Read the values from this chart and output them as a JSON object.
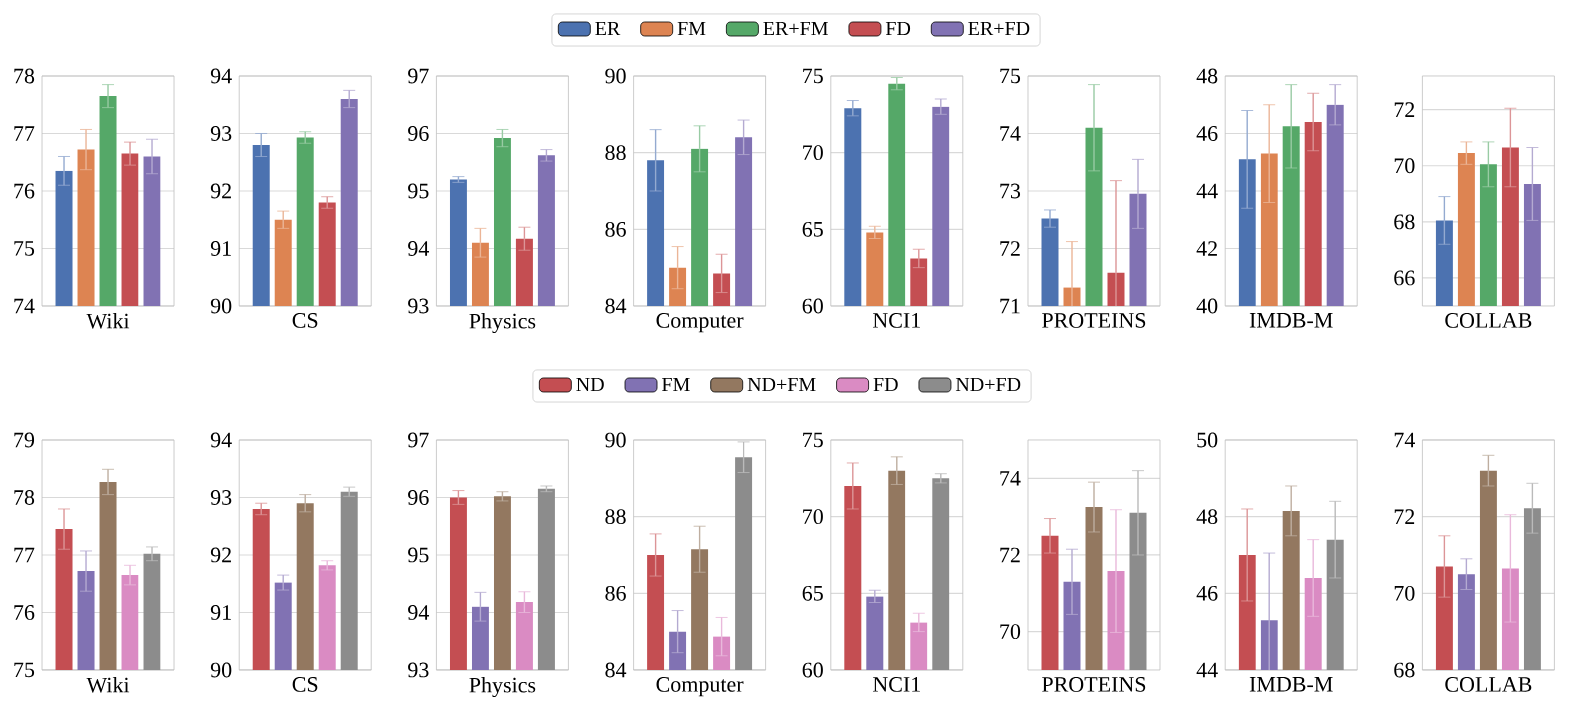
{
  "chart_data": [
    {
      "type": "bar",
      "categories": [
        "Wiki"
      ],
      "ylim": [
        74,
        78
      ],
      "yticks": [
        74,
        75,
        76,
        77,
        78
      ],
      "grid": "y",
      "legend": "top",
      "series": [
        {
          "name": "ER",
          "color": "#4c72b0",
          "values": [
            76.35
          ],
          "errors": [
            0.25
          ]
        },
        {
          "name": "FM",
          "color": "#dd8452",
          "values": [
            76.72
          ],
          "errors": [
            0.35
          ]
        },
        {
          "name": "ER+FM",
          "color": "#55a868",
          "values": [
            77.65
          ],
          "errors": [
            0.2
          ]
        },
        {
          "name": "FD",
          "color": "#c44e52",
          "values": [
            76.65
          ],
          "errors": [
            0.2
          ]
        },
        {
          "name": "ER+FD",
          "color": "#8172b3",
          "values": [
            76.6
          ],
          "errors": [
            0.3
          ]
        }
      ]
    },
    {
      "type": "bar",
      "categories": [
        "CS"
      ],
      "ylim": [
        90,
        94
      ],
      "yticks": [
        90,
        91,
        92,
        93,
        94
      ],
      "grid": "y",
      "series": [
        {
          "color": "#4c72b0",
          "values": [
            92.8
          ],
          "errors": [
            0.2
          ]
        },
        {
          "color": "#dd8452",
          "values": [
            91.5
          ],
          "errors": [
            0.15
          ]
        },
        {
          "color": "#55a868",
          "values": [
            92.93
          ],
          "errors": [
            0.1
          ]
        },
        {
          "color": "#c44e52",
          "values": [
            91.8
          ],
          "errors": [
            0.1
          ]
        },
        {
          "color": "#8172b3",
          "values": [
            93.6
          ],
          "errors": [
            0.15
          ]
        }
      ]
    },
    {
      "type": "bar",
      "categories": [
        "Physics"
      ],
      "ylim": [
        93,
        97
      ],
      "yticks": [
        93,
        94,
        95,
        96,
        97
      ],
      "grid": "y",
      "series": [
        {
          "color": "#4c72b0",
          "values": [
            95.2
          ],
          "errors": [
            0.05
          ]
        },
        {
          "color": "#dd8452",
          "values": [
            94.1
          ],
          "errors": [
            0.25
          ]
        },
        {
          "color": "#55a868",
          "values": [
            95.92
          ],
          "errors": [
            0.15
          ]
        },
        {
          "color": "#c44e52",
          "values": [
            94.17
          ],
          "errors": [
            0.2
          ]
        },
        {
          "color": "#8172b3",
          "values": [
            95.62
          ],
          "errors": [
            0.1
          ]
        }
      ]
    },
    {
      "type": "bar",
      "categories": [
        "Computer"
      ],
      "ylim": [
        84,
        90
      ],
      "yticks": [
        84,
        86,
        88,
        90
      ],
      "grid": "y",
      "series": [
        {
          "color": "#4c72b0",
          "values": [
            87.8
          ],
          "errors": [
            0.8
          ]
        },
        {
          "color": "#dd8452",
          "values": [
            85.0
          ],
          "errors": [
            0.55
          ]
        },
        {
          "color": "#55a868",
          "values": [
            88.1
          ],
          "errors": [
            0.6
          ]
        },
        {
          "color": "#c44e52",
          "values": [
            84.85
          ],
          "errors": [
            0.5
          ]
        },
        {
          "color": "#8172b3",
          "values": [
            88.4
          ],
          "errors": [
            0.45
          ]
        }
      ]
    },
    {
      "type": "bar",
      "categories": [
        "NCI1"
      ],
      "ylim": [
        60,
        75
      ],
      "yticks": [
        60,
        65,
        70,
        75
      ],
      "grid": "y",
      "series": [
        {
          "color": "#4c72b0",
          "values": [
            72.9
          ],
          "errors": [
            0.5
          ]
        },
        {
          "color": "#dd8452",
          "values": [
            64.8
          ],
          "errors": [
            0.4
          ]
        },
        {
          "color": "#55a868",
          "values": [
            74.5
          ],
          "errors": [
            0.4
          ]
        },
        {
          "color": "#c44e52",
          "values": [
            63.1
          ],
          "errors": [
            0.6
          ]
        },
        {
          "color": "#8172b3",
          "values": [
            73.0
          ],
          "errors": [
            0.5
          ]
        }
      ]
    },
    {
      "type": "bar",
      "categories": [
        "PROTEINS"
      ],
      "ylim": [
        71,
        75
      ],
      "yticks": [
        71,
        72,
        73,
        74,
        75
      ],
      "grid": "y",
      "series": [
        {
          "color": "#4c72b0",
          "values": [
            72.52
          ],
          "errors": [
            0.15
          ]
        },
        {
          "color": "#dd8452",
          "values": [
            71.32
          ],
          "errors": [
            0.8
          ]
        },
        {
          "color": "#55a868",
          "values": [
            74.1
          ],
          "errors": [
            0.75
          ]
        },
        {
          "color": "#c44e52",
          "values": [
            71.58
          ],
          "errors": [
            1.6
          ]
        },
        {
          "color": "#8172b3",
          "values": [
            72.95
          ],
          "errors": [
            0.6
          ]
        }
      ]
    },
    {
      "type": "bar",
      "categories": [
        "IMDB-M"
      ],
      "ylim": [
        40,
        48
      ],
      "yticks": [
        40,
        42,
        44,
        46,
        48
      ],
      "grid": "y",
      "series": [
        {
          "color": "#4c72b0",
          "values": [
            45.1
          ],
          "errors": [
            1.7
          ]
        },
        {
          "color": "#dd8452",
          "values": [
            45.3
          ],
          "errors": [
            1.7
          ]
        },
        {
          "color": "#55a868",
          "values": [
            46.25
          ],
          "errors": [
            1.45
          ]
        },
        {
          "color": "#c44e52",
          "values": [
            46.4
          ],
          "errors": [
            1.0
          ]
        },
        {
          "color": "#8172b3",
          "values": [
            47.0
          ],
          "errors": [
            0.7
          ]
        }
      ]
    },
    {
      "type": "bar",
      "categories": [
        "COLLAB"
      ],
      "ylim": [
        65,
        73.2
      ],
      "yticks": [
        66,
        68,
        70,
        72
      ],
      "grid": "y",
      "series": [
        {
          "color": "#4c72b0",
          "values": [
            68.05
          ],
          "errors": [
            0.85
          ]
        },
        {
          "color": "#dd8452",
          "values": [
            70.45
          ],
          "errors": [
            0.4
          ]
        },
        {
          "color": "#55a868",
          "values": [
            70.05
          ],
          "errors": [
            0.8
          ]
        },
        {
          "color": "#c44e52",
          "values": [
            70.65
          ],
          "errors": [
            1.4
          ]
        },
        {
          "color": "#8172b3",
          "values": [
            69.35
          ],
          "errors": [
            1.3
          ]
        }
      ]
    },
    {
      "type": "bar",
      "categories": [
        "Wiki"
      ],
      "ylim": [
        75,
        79
      ],
      "yticks": [
        75,
        76,
        77,
        78,
        79
      ],
      "grid": "y",
      "legend": "top",
      "series": [
        {
          "name": "ND",
          "color": "#c44e52",
          "values": [
            77.45
          ],
          "errors": [
            0.35
          ]
        },
        {
          "name": "FM",
          "color": "#8172b3",
          "values": [
            76.72
          ],
          "errors": [
            0.35
          ]
        },
        {
          "name": "ND+FM",
          "color": "#937860",
          "values": [
            78.27
          ],
          "errors": [
            0.22
          ]
        },
        {
          "name": "FD",
          "color": "#da8bc3",
          "values": [
            76.65
          ],
          "errors": [
            0.17
          ]
        },
        {
          "name": "ND+FD",
          "color": "#8c8c8c",
          "values": [
            77.02
          ],
          "errors": [
            0.12
          ]
        }
      ]
    },
    {
      "type": "bar",
      "categories": [
        "CS"
      ],
      "ylim": [
        90,
        94
      ],
      "yticks": [
        90,
        91,
        92,
        93,
        94
      ],
      "grid": "y",
      "series": [
        {
          "color": "#c44e52",
          "values": [
            92.8
          ],
          "errors": [
            0.1
          ]
        },
        {
          "color": "#8172b3",
          "values": [
            91.52
          ],
          "errors": [
            0.13
          ]
        },
        {
          "color": "#937860",
          "values": [
            92.9
          ],
          "errors": [
            0.15
          ]
        },
        {
          "color": "#da8bc3",
          "values": [
            91.82
          ],
          "errors": [
            0.08
          ]
        },
        {
          "color": "#8c8c8c",
          "values": [
            93.1
          ],
          "errors": [
            0.08
          ]
        }
      ]
    },
    {
      "type": "bar",
      "categories": [
        "Physics"
      ],
      "ylim": [
        93,
        97
      ],
      "yticks": [
        93,
        94,
        95,
        96,
        97
      ],
      "grid": "y",
      "series": [
        {
          "color": "#c44e52",
          "values": [
            96.0
          ],
          "errors": [
            0.12
          ]
        },
        {
          "color": "#8172b3",
          "values": [
            94.1
          ],
          "errors": [
            0.25
          ]
        },
        {
          "color": "#937860",
          "values": [
            96.02
          ],
          "errors": [
            0.08
          ]
        },
        {
          "color": "#da8bc3",
          "values": [
            94.18
          ],
          "errors": [
            0.18
          ]
        },
        {
          "color": "#8c8c8c",
          "values": [
            96.15
          ],
          "errors": [
            0.05
          ]
        }
      ]
    },
    {
      "type": "bar",
      "categories": [
        "Computer"
      ],
      "ylim": [
        84,
        90
      ],
      "yticks": [
        84,
        86,
        88,
        90
      ],
      "grid": "y",
      "series": [
        {
          "color": "#c44e52",
          "values": [
            87.0
          ],
          "errors": [
            0.55
          ]
        },
        {
          "color": "#8172b3",
          "values": [
            85.0
          ],
          "errors": [
            0.55
          ]
        },
        {
          "color": "#937860",
          "values": [
            87.15
          ],
          "errors": [
            0.6
          ]
        },
        {
          "color": "#da8bc3",
          "values": [
            84.87
          ],
          "errors": [
            0.5
          ]
        },
        {
          "color": "#8c8c8c",
          "values": [
            89.55
          ],
          "errors": [
            0.4
          ]
        }
      ]
    },
    {
      "type": "bar",
      "categories": [
        "NCI1"
      ],
      "ylim": [
        60,
        75
      ],
      "yticks": [
        60,
        65,
        70,
        75
      ],
      "grid": "y",
      "series": [
        {
          "color": "#c44e52",
          "values": [
            72.0
          ],
          "errors": [
            1.5
          ]
        },
        {
          "color": "#8172b3",
          "values": [
            64.8
          ],
          "errors": [
            0.4
          ]
        },
        {
          "color": "#937860",
          "values": [
            73.0
          ],
          "errors": [
            0.9
          ]
        },
        {
          "color": "#da8bc3",
          "values": [
            63.1
          ],
          "errors": [
            0.6
          ]
        },
        {
          "color": "#8c8c8c",
          "values": [
            72.5
          ],
          "errors": [
            0.3
          ]
        }
      ]
    },
    {
      "type": "bar",
      "categories": [
        "PROTEINS"
      ],
      "ylim": [
        69,
        75
      ],
      "yticks": [
        70,
        72,
        74
      ],
      "grid": "y",
      "series": [
        {
          "color": "#c44e52",
          "values": [
            72.5
          ],
          "errors": [
            0.45
          ]
        },
        {
          "color": "#8172b3",
          "values": [
            71.3
          ],
          "errors": [
            0.85
          ]
        },
        {
          "color": "#937860",
          "values": [
            73.25
          ],
          "errors": [
            0.65
          ]
        },
        {
          "color": "#da8bc3",
          "values": [
            71.58
          ],
          "errors": [
            1.6
          ]
        },
        {
          "color": "#8c8c8c",
          "values": [
            73.1
          ],
          "errors": [
            1.1
          ]
        }
      ]
    },
    {
      "type": "bar",
      "categories": [
        "IMDB-M"
      ],
      "ylim": [
        44,
        50
      ],
      "yticks": [
        44,
        46,
        48,
        50
      ],
      "grid": "y",
      "series": [
        {
          "color": "#c44e52",
          "values": [
            47.0
          ],
          "errors": [
            1.2
          ]
        },
        {
          "color": "#8172b3",
          "values": [
            45.3
          ],
          "errors": [
            1.75
          ]
        },
        {
          "color": "#937860",
          "values": [
            48.15
          ],
          "errors": [
            0.65
          ]
        },
        {
          "color": "#da8bc3",
          "values": [
            46.4
          ],
          "errors": [
            1.0
          ]
        },
        {
          "color": "#8c8c8c",
          "values": [
            47.4
          ],
          "errors": [
            1.0
          ]
        }
      ]
    },
    {
      "type": "bar",
      "categories": [
        "COLLAB"
      ],
      "ylim": [
        68,
        74
      ],
      "yticks": [
        68,
        70,
        72,
        74
      ],
      "grid": "y",
      "series": [
        {
          "color": "#c44e52",
          "values": [
            70.7
          ],
          "errors": [
            0.8
          ]
        },
        {
          "color": "#8172b3",
          "values": [
            70.5
          ],
          "errors": [
            0.4
          ]
        },
        {
          "color": "#937860",
          "values": [
            73.2
          ],
          "errors": [
            0.4
          ]
        },
        {
          "color": "#da8bc3",
          "values": [
            70.65
          ],
          "errors": [
            1.4
          ]
        },
        {
          "color": "#8c8c8c",
          "values": [
            72.22
          ],
          "errors": [
            0.65
          ]
        }
      ]
    }
  ]
}
